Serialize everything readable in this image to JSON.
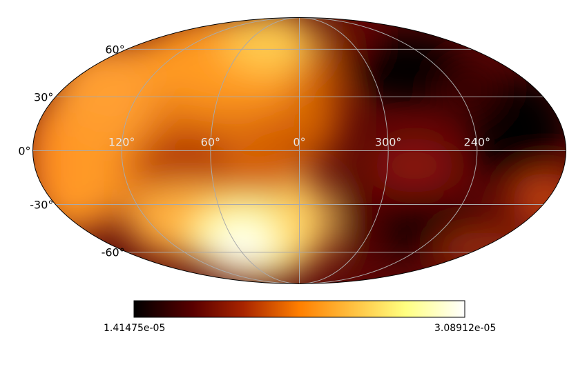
{
  "map": {
    "projection": "mollweide",
    "colormap": "afmhot",
    "graticule_color": "#aaaaaa",
    "outline_color": "#000000"
  },
  "latitude_labels": [
    {
      "lat": 60,
      "text": "60°"
    },
    {
      "lat": 30,
      "text": "30°"
    },
    {
      "lat": 0,
      "text": "0°"
    },
    {
      "lat": -30,
      "text": "-30°"
    },
    {
      "lat": -60,
      "text": "-60°"
    }
  ],
  "longitude_labels": [
    {
      "lon": 120,
      "text": "120°"
    },
    {
      "lon": 60,
      "text": "60°"
    },
    {
      "lon": 0,
      "text": "0°"
    },
    {
      "lon": 300,
      "text": "300°"
    },
    {
      "lon": 240,
      "text": "240°"
    }
  ],
  "colorbar": {
    "min_label": "1.41475e-05",
    "max_label": "3.08912e-05",
    "stops": [
      "#000000",
      "#5a0000",
      "#a82400",
      "#ff7f00",
      "#ffc040",
      "#ffff80",
      "#ffffff"
    ]
  }
}
